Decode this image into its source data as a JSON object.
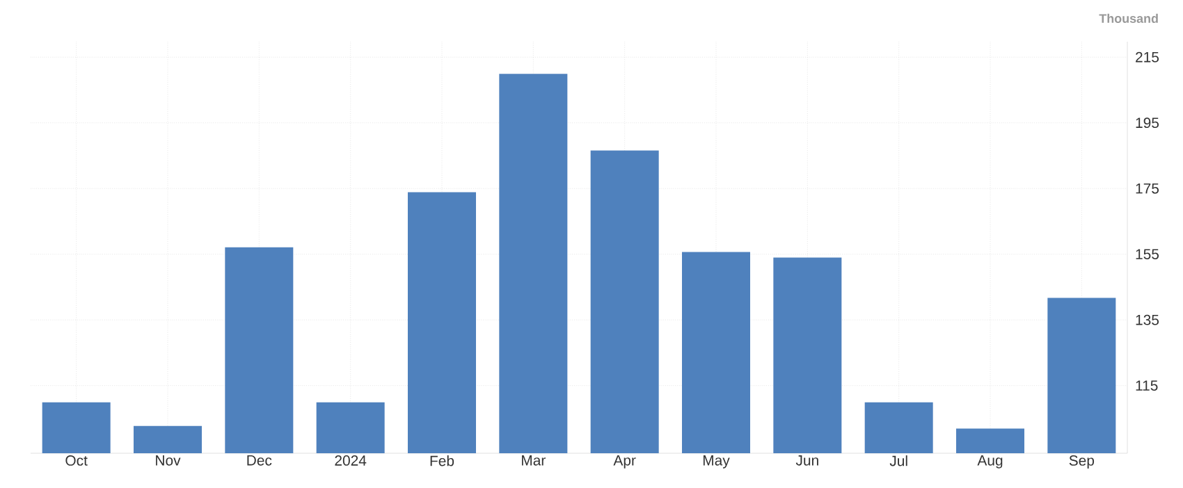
{
  "chart_data": {
    "type": "bar",
    "ylabel": "Thousand",
    "categories": [
      "Oct",
      "Nov",
      "Dec",
      "2024",
      "Feb",
      "Mar",
      "Apr",
      "May",
      "Jun",
      "Jul",
      "Aug",
      "Sep"
    ],
    "values": [
      109.9,
      102.7,
      157.1,
      109.9,
      173.9,
      209.9,
      186.6,
      155.7,
      154.0,
      109.9,
      101.9,
      141.7
    ],
    "color": "#4f81bd",
    "ylim": [
      94.4,
      219.7
    ],
    "yticks": [
      115,
      135,
      155,
      175,
      195,
      215
    ],
    "grid": true
  }
}
